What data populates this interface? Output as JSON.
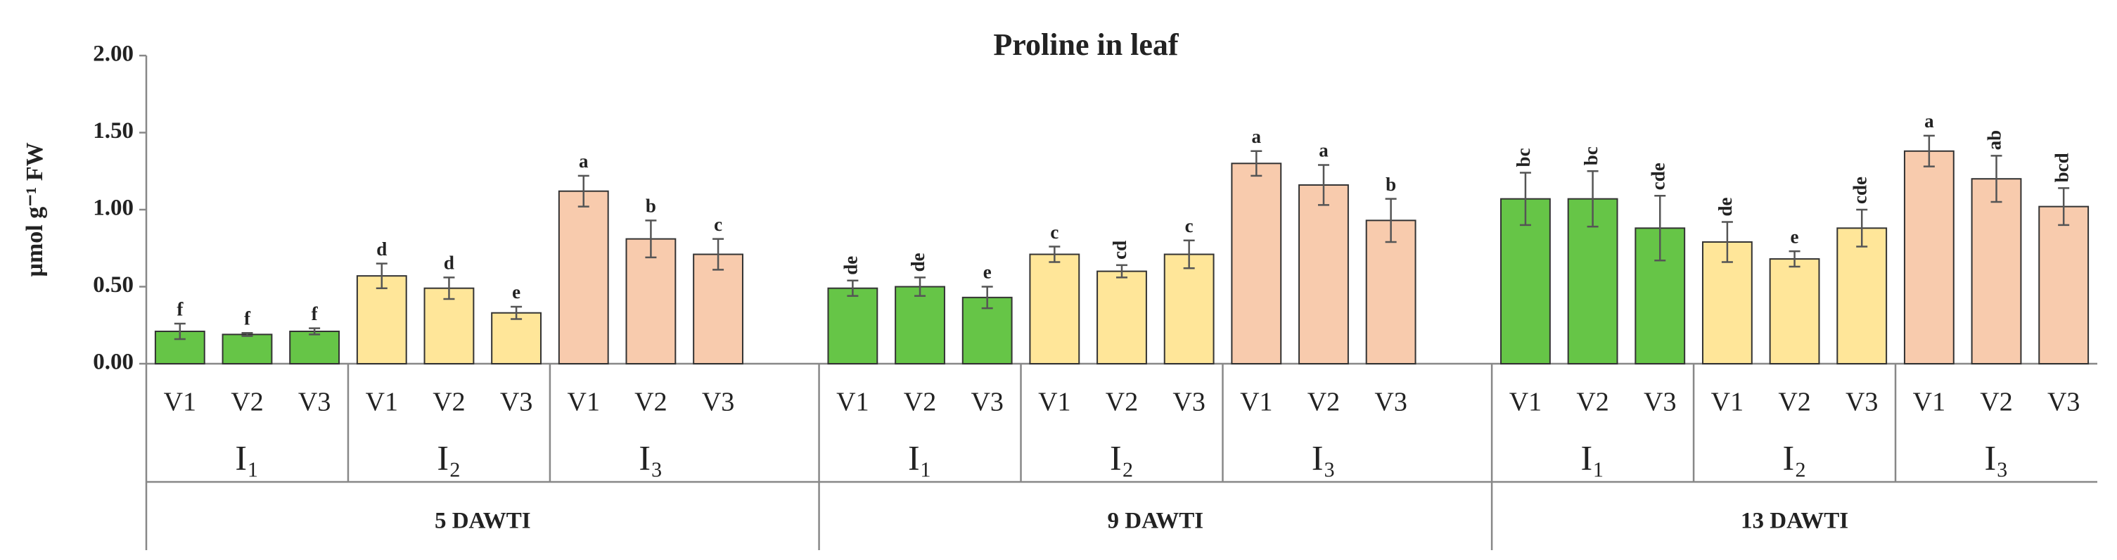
{
  "chart_data": {
    "type": "bar",
    "title": "Proline in leaf",
    "y_label": "µmol g⁻¹ FW",
    "ylim": [
      0,
      2
    ],
    "yticks": [
      {
        "value": 0,
        "label": "0.00"
      },
      {
        "value": 0.5,
        "label": "0.50"
      },
      {
        "value": 1,
        "label": "1.00"
      },
      {
        "value": 1.5,
        "label": "1.50"
      },
      {
        "value": 2,
        "label": "2.00"
      }
    ],
    "groups": [
      {
        "label": "5 DAWTI",
        "subgroups": [
          {
            "label": "I₁",
            "color": "#66c547",
            "categories": [
              "V1",
              "V2",
              "V3"
            ],
            "values": [
              0.21,
              0.19,
              0.21
            ],
            "errors": [
              0.05,
              0.01,
              0.02
            ],
            "letters": [
              "f",
              "f",
              "f"
            ]
          },
          {
            "label": "I₂",
            "color": "#ffe699",
            "categories": [
              "V1",
              "V2",
              "V3"
            ],
            "values": [
              0.57,
              0.49,
              0.33
            ],
            "errors": [
              0.08,
              0.07,
              0.04
            ],
            "letters": [
              "d",
              "d",
              "e"
            ]
          },
          {
            "label": "I₃",
            "color": "#f8cbad",
            "categories": [
              "V1",
              "V2",
              "V3"
            ],
            "values": [
              1.12,
              0.81,
              0.71
            ],
            "errors": [
              0.1,
              0.12,
              0.1
            ],
            "letters": [
              "a",
              "b",
              "c"
            ]
          }
        ]
      },
      {
        "label": "9 DAWTI",
        "subgroups": [
          {
            "label": "I₁",
            "color": "#66c547",
            "categories": [
              "V1",
              "V2",
              "V3"
            ],
            "values": [
              0.49,
              0.5,
              0.43
            ],
            "errors": [
              0.05,
              0.06,
              0.07
            ],
            "letters": [
              "de",
              "de",
              "e"
            ]
          },
          {
            "label": "I₂",
            "color": "#ffe699",
            "categories": [
              "V1",
              "V2",
              "V3"
            ],
            "values": [
              0.71,
              0.6,
              0.71
            ],
            "errors": [
              0.05,
              0.04,
              0.09
            ],
            "letters": [
              "c",
              "cd",
              "c"
            ]
          },
          {
            "label": "I₃",
            "color": "#f8cbad",
            "categories": [
              "V1",
              "V2",
              "V3"
            ],
            "values": [
              1.3,
              1.16,
              0.93
            ],
            "errors": [
              0.08,
              0.13,
              0.14
            ],
            "letters": [
              "a",
              "a",
              "b"
            ]
          }
        ]
      },
      {
        "label": "13 DAWTI",
        "subgroups": [
          {
            "label": "I₁",
            "color": "#66c547",
            "categories": [
              "V1",
              "V2",
              "V3"
            ],
            "values": [
              1.07,
              1.07,
              0.88
            ],
            "errors": [
              0.17,
              0.18,
              0.21
            ],
            "letters": [
              "bc",
              "bc",
              "cde"
            ]
          },
          {
            "label": "I₂",
            "color": "#ffe699",
            "categories": [
              "V1",
              "V2",
              "V3"
            ],
            "values": [
              0.79,
              0.68,
              0.88
            ],
            "errors": [
              0.13,
              0.05,
              0.12
            ],
            "letters": [
              "de",
              "e",
              "cde"
            ]
          },
          {
            "label": "I₃",
            "color": "#f8cbad",
            "categories": [
              "V1",
              "V2",
              "V3"
            ],
            "values": [
              1.38,
              1.2,
              1.02
            ],
            "errors": [
              0.1,
              0.15,
              0.12
            ],
            "letters": [
              "a",
              "ab",
              "bcd"
            ]
          }
        ]
      }
    ]
  }
}
